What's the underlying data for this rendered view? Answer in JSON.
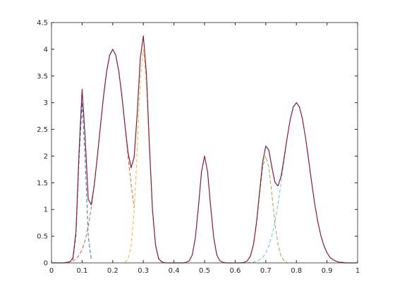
{
  "chart_data": {
    "type": "line",
    "xlim": [
      0,
      1
    ],
    "xticks": [
      0,
      0.1,
      0.2,
      0.3,
      0.4,
      0.5,
      0.6,
      0.7,
      0.8,
      0.9,
      1
    ],
    "ylim": [
      0,
      4.5
    ],
    "yticks": [
      0,
      0.5,
      1,
      1.5,
      2,
      2.5,
      3,
      3.5,
      4,
      4.5
    ],
    "grid": false,
    "series": [
      {
        "color": "#0072bd",
        "style": "dashed",
        "x": [
          0.07,
          0.08,
          0.09,
          0.1,
          0.11,
          0.12,
          0.13
        ],
        "values": [
          0.06,
          0.51,
          1.93,
          3,
          1.93,
          0.51,
          0.06
        ]
      },
      {
        "color": "#d95319",
        "style": "dashed",
        "x": [
          0.05,
          0.06,
          0.07,
          0.08,
          0.09,
          0.1,
          0.11,
          0.12,
          0.13,
          0.14,
          0.15,
          0.16,
          0.17,
          0.18,
          0.19,
          0.2,
          0.21,
          0.22,
          0.23,
          0.24,
          0.25,
          0.26,
          0.27
        ],
        "values": [
          0.01,
          0.02,
          0.04,
          0.07,
          0.14,
          0.25,
          0.42,
          0.68,
          1.03,
          1.47,
          2,
          2.57,
          3.12,
          3.58,
          3.89,
          4,
          3.89,
          3.58,
          3.12,
          2.57,
          2,
          1.47,
          1.03
        ]
      },
      {
        "color": "#edb120",
        "style": "dashed",
        "x": [
          0.24,
          0.25,
          0.26,
          0.27,
          0.28,
          0.29,
          0.3,
          0.31,
          0.32,
          0.33,
          0.34,
          0.35,
          0.36
        ],
        "values": [
          0.01,
          0.07,
          0.31,
          0.95,
          2.11,
          3.41,
          4,
          3.41,
          2.11,
          0.95,
          0.31,
          0.07,
          0.01
        ]
      },
      {
        "color": "#77ac30",
        "style": "dashed",
        "x": [
          0.63,
          0.64,
          0.65,
          0.66,
          0.67,
          0.68,
          0.69,
          0.7,
          0.71,
          0.72,
          0.73,
          0.74,
          0.75,
          0.76,
          0.77
        ],
        "values": [
          0.01,
          0.04,
          0.12,
          0.34,
          0.74,
          1.28,
          1.79,
          2,
          1.79,
          1.28,
          0.74,
          0.34,
          0.12,
          0.04,
          0.01
        ]
      },
      {
        "color": "#4dbeee",
        "style": "dashed",
        "x": [
          0.62,
          0.63,
          0.64,
          0.65,
          0.66,
          0.67,
          0.68,
          0.69,
          0.7,
          0.71,
          0.72,
          0.73,
          0.74,
          0.75,
          0.76,
          0.77
        ],
        "values": [
          0,
          0,
          0,
          0.01,
          0.01,
          0.03,
          0.06,
          0.1,
          0.19,
          0.32,
          0.51,
          0.77,
          1.1,
          1.5,
          1.93,
          2.34
        ]
      },
      {
        "color": "#8b1a3a",
        "style": "solid",
        "x": [
          0,
          0.01,
          0.02,
          0.03,
          0.04,
          0.05,
          0.06,
          0.07,
          0.08,
          0.09,
          0.1,
          0.11,
          0.12,
          0.13,
          0.14,
          0.15,
          0.16,
          0.17,
          0.18,
          0.19,
          0.2,
          0.21,
          0.22,
          0.23,
          0.24,
          0.25,
          0.26,
          0.27,
          0.28,
          0.29,
          0.3,
          0.31,
          0.32,
          0.33,
          0.34,
          0.35,
          0.36,
          0.37,
          0.38,
          0.39,
          0.4,
          0.41,
          0.42,
          0.43,
          0.44,
          0.45,
          0.46,
          0.47,
          0.48,
          0.49,
          0.5,
          0.51,
          0.52,
          0.53,
          0.54,
          0.55,
          0.56,
          0.57,
          0.58,
          0.59,
          0.6,
          0.61,
          0.62,
          0.63,
          0.64,
          0.65,
          0.66,
          0.67,
          0.68,
          0.69,
          0.7,
          0.71,
          0.72,
          0.73,
          0.74,
          0.75,
          0.76,
          0.77,
          0.78,
          0.79,
          0.8,
          0.81,
          0.82,
          0.83,
          0.84,
          0.85,
          0.86,
          0.87,
          0.88,
          0.89,
          0.9,
          0.91,
          0.92,
          0.93,
          0.94,
          0.95,
          0.96,
          0.97,
          0.98,
          0.99,
          1
        ],
        "values": [
          0,
          0,
          0,
          0,
          0,
          0.01,
          0.02,
          0.09,
          0.58,
          2.07,
          3.25,
          2.35,
          1.19,
          1.09,
          1.47,
          2,
          2.57,
          3.12,
          3.58,
          3.89,
          4,
          3.89,
          3.58,
          3.12,
          2.58,
          2.07,
          1.78,
          1.98,
          2.79,
          3.83,
          4.25,
          3.55,
          2.18,
          0.99,
          0.33,
          0.08,
          0.02,
          0,
          0,
          0,
          0,
          0,
          0,
          0,
          0.01,
          0.04,
          0.15,
          0.47,
          1.05,
          1.7,
          2,
          1.7,
          1.05,
          0.47,
          0.15,
          0.04,
          0.01,
          0,
          0,
          0,
          0,
          0,
          0,
          0.01,
          0.04,
          0.13,
          0.35,
          0.77,
          1.34,
          1.89,
          2.19,
          2.11,
          1.79,
          1.51,
          1.44,
          1.62,
          1.97,
          2.35,
          2.69,
          2.92,
          3,
          2.92,
          2.69,
          2.34,
          1.93,
          1.5,
          1.1,
          0.77,
          0.51,
          0.32,
          0.19,
          0.1,
          0.06,
          0.03,
          0.01,
          0.01,
          0,
          0,
          0,
          0,
          0
        ]
      }
    ]
  }
}
